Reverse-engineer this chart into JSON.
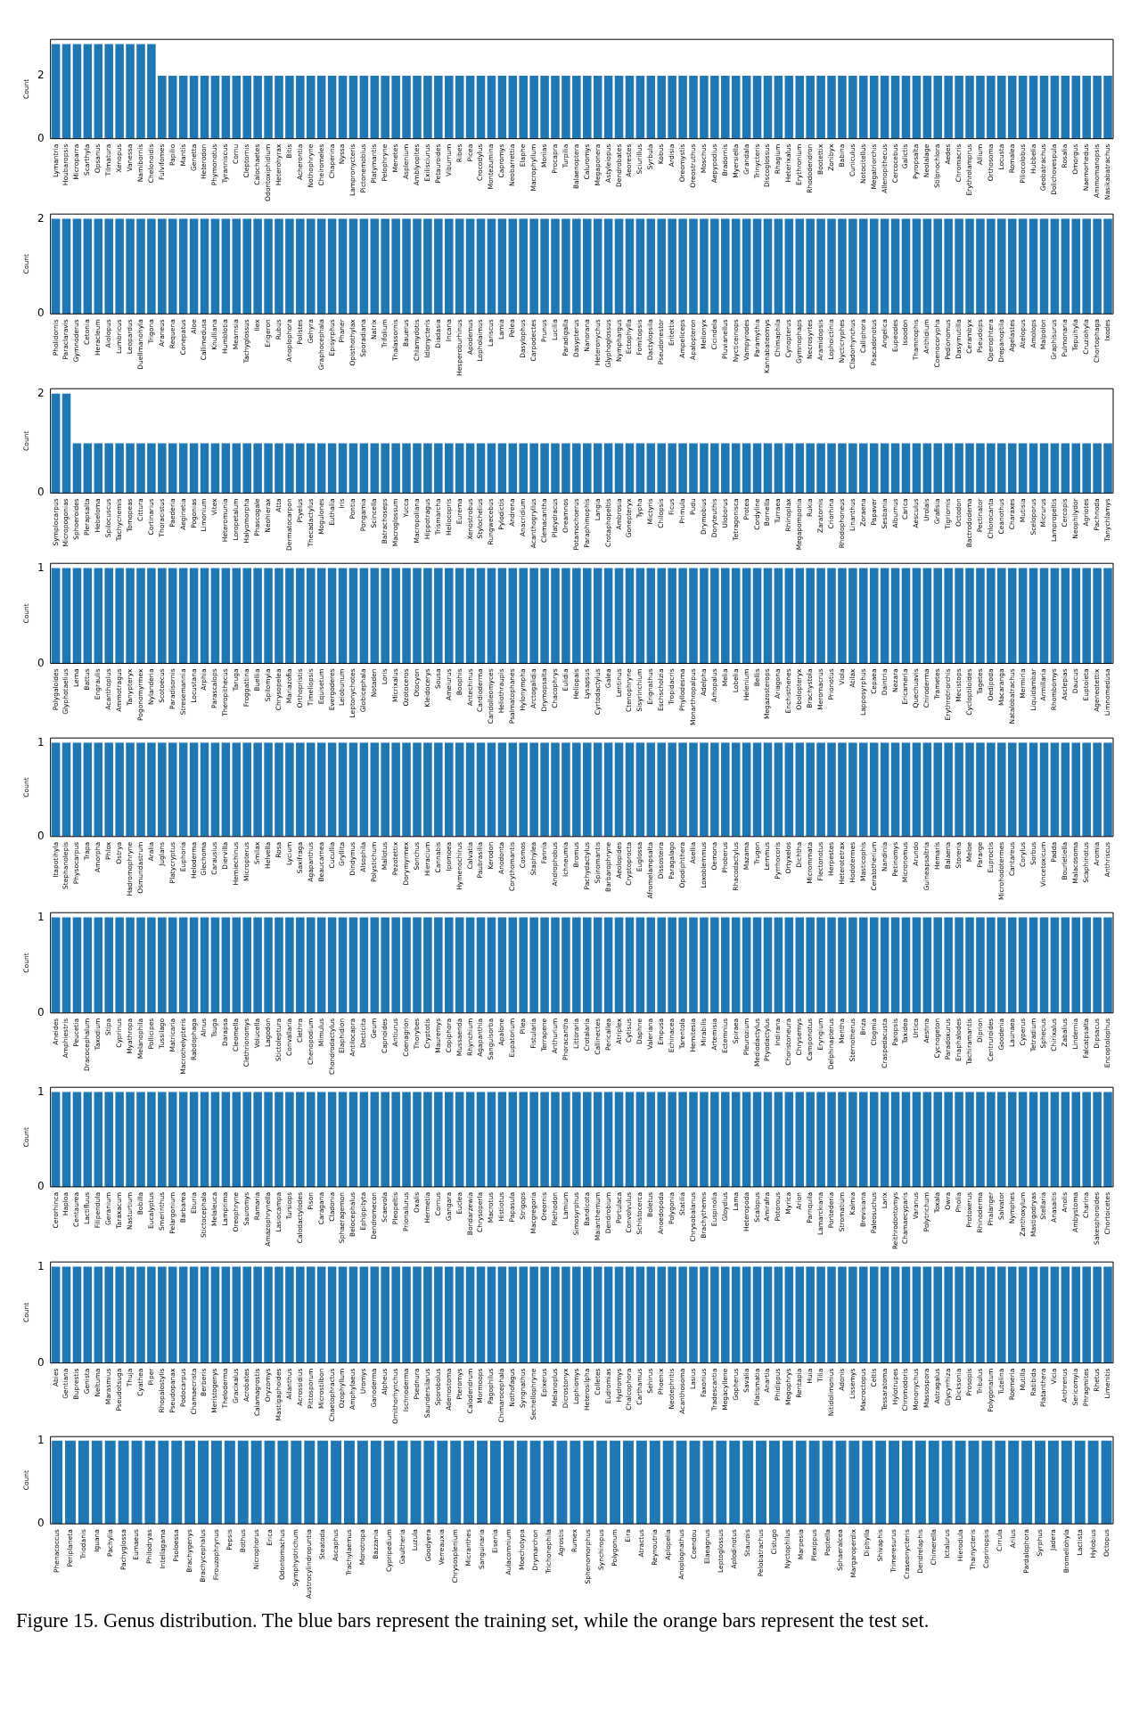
{
  "chart_data": [
    {
      "type": "bar",
      "ylabel": "Count",
      "color": "#1f77b4",
      "ylim": [
        0,
        3.15
      ],
      "yticks": [
        0,
        2
      ],
      "categories": [
        "Lymantria",
        "Houbaropsis",
        "Microparra",
        "Scarthyla",
        "Opsanus",
        "Tilmatura",
        "Xenopus",
        "Vanessa",
        "Namibornis",
        "Chelonoidis",
        "Fulvifomes",
        "Papilio",
        "Mantis",
        "Genetta",
        "Heterodon",
        "Phymonotus",
        "Tyranniscus",
        "Cornu",
        "Cleptornis",
        "Calochaetes",
        "Odontoxiphidium",
        "Heterohyrax",
        "Bitis",
        "Acherontia",
        "Nothophryne",
        "Cheiromeles",
        "Chaperina",
        "Nyssa",
        "Lampronycteris",
        "Pictonemobius",
        "Platymantis",
        "Pelophryne",
        "Menetes",
        "Asplenium",
        "Amblyopites",
        "Exilisciurus",
        "Petauroides",
        "Viburnum",
        "Ribes",
        "Picea",
        "Crocodylus",
        "Montezumina",
        "Capromys",
        "Neobarrettia",
        "Elaphe",
        "Macrophyllum",
        "Monias",
        "Procapra",
        "Turpilia",
        "Balaenoptera",
        "Caluromys",
        "Megaponera",
        "Astyleiopus",
        "Dendrobates",
        "Aeorestes",
        "Sciurillus",
        "Syrbula",
        "Kobus",
        "Ardisia",
        "Oreomystis",
        "Oreostruthus",
        "Moschus",
        "Aepypodius",
        "Bradornis",
        "Myersiella",
        "Grandala",
        "Trinycteris",
        "Discoglossus",
        "Rhagium",
        "Heterixalus",
        "Erythronium",
        "Rhododendron",
        "Bootettix",
        "Zonibyx",
        "Babina",
        "Cuniculus",
        "Notocitellus",
        "Megatriorchis",
        "Allenopithecus",
        "Cercocebus",
        "Galictis",
        "Pyropsalta",
        "Neolalage",
        "Stilpnochlora",
        "Aedes",
        "Chromacris",
        "Erythrolamprus",
        "Allium",
        "Orthosoma",
        "Locusta",
        "Romalea",
        "Piliocolobus",
        "Hubbelia",
        "Geobatrachus",
        "Dolichovespula",
        "Rosalia",
        "Omorgus",
        "Naemorhedus",
        "Ammomanopsis",
        "Nasikabatrachus"
      ],
      "values": [
        3,
        3,
        3,
        3,
        3,
        3,
        3,
        3,
        3,
        3,
        2,
        2,
        2,
        2,
        2,
        2,
        2,
        2,
        2,
        2,
        2,
        2,
        2,
        2,
        2,
        2,
        2,
        2,
        2,
        2,
        2,
        2,
        2,
        2,
        2,
        2,
        2,
        2,
        2,
        2,
        2,
        2,
        2,
        2,
        2,
        2,
        2,
        2,
        2,
        2,
        2,
        2,
        2,
        2,
        2,
        2,
        2,
        2,
        2,
        2,
        2,
        2,
        2,
        2,
        2,
        2,
        2,
        2,
        2,
        2,
        2,
        2,
        2,
        2,
        2,
        2,
        2,
        2,
        2,
        2,
        2,
        2,
        2,
        2,
        2,
        2,
        2,
        2,
        2,
        2,
        2,
        2,
        2,
        2,
        2,
        2,
        2,
        2,
        2,
        2
      ]
    },
    {
      "type": "bar",
      "ylabel": "Count",
      "color": "#1f77b4",
      "ylim": [
        0,
        2.1
      ],
      "yticks": [
        0,
        2
      ],
      "categories": [
        "Pholidornis",
        "Paraclaravis",
        "Gymnoderus",
        "Cetonia",
        "Heracleum",
        "Aiolopus",
        "Lumbricus",
        "Leopardus",
        "Duellmanohyla",
        "Trigona",
        "Araneus",
        "Requena",
        "Conepatus",
        "Aloe",
        "Callimedusa",
        "Knulliana",
        "Humblotia",
        "Mearnsia",
        "Tachyglossus",
        "Ilex",
        "Erigeron",
        "Rubus",
        "Anoplophora",
        "Polistes",
        "Gehyra",
        "Graphocephala",
        "Episyrphus",
        "Phaner",
        "Opisthothylax",
        "Sporadiana",
        "Natrix",
        "Trifolium",
        "Thalassornis",
        "Bauerus",
        "Chlamydotis",
        "Idionycteris",
        "Diadasia",
        "Incana",
        "Hesperoburhinus",
        "Apodemus",
        "Lopholaimus",
        "Lariscus",
        "Lamia",
        "Pelea",
        "Dasylophus",
        "Carpodectes",
        "Prunus",
        "Lucilia",
        "Paradigalla",
        "Dasypterus",
        "Nanorana",
        "Heteronychus",
        "Glyphoglossus",
        "Nymphargus",
        "Ectophylla",
        "Fomitopsis",
        "Dactylopsila",
        "Pseudonestor",
        "Eritettix",
        "Ampeliceps",
        "Apalopteron",
        "Melionyx",
        "Cicindela",
        "Pluvianellus",
        "Nycticeinops",
        "Vampyrodes",
        "Paramythia",
        "Kannabateomys",
        "Chimaphila",
        "Cynopterus",
        "Gymnophaps",
        "Necrosyrtes",
        "Aramidopsis",
        "Lophoictinia",
        "Nycticryphes",
        "Cladorhynchus",
        "Calliphora",
        "Psacadonotus",
        "Angelica",
        "Eupeodes",
        "Isoodon",
        "Thamnophis",
        "Anthidium",
        "Coenocorypha",
        "Pedionomus",
        "Dasymutilla",
        "Cerambyx",
        "Pseudoips",
        "Operophtera",
        "Drepanoptila",
        "Agelastes",
        "Atelopus",
        "Amolops",
        "Malpolon",
        "Graphisurus",
        "Pulmonaria",
        "Tepuihyla",
        "Cruziohyla",
        "Chortophaga",
        "Ixodes"
      ],
      "values": [
        2,
        2,
        2,
        2,
        2,
        2,
        2,
        2,
        2,
        2,
        2,
        2,
        2,
        2,
        2,
        2,
        2,
        2,
        2,
        2,
        2,
        2,
        2,
        2,
        2,
        2,
        2,
        2,
        2,
        2,
        2,
        2,
        2,
        2,
        2,
        2,
        2,
        2,
        2,
        2,
        2,
        2,
        2,
        2,
        2,
        2,
        2,
        2,
        2,
        2,
        2,
        2,
        2,
        2,
        2,
        2,
        2,
        2,
        2,
        2,
        2,
        2,
        2,
        2,
        2,
        2,
        2,
        2,
        2,
        2,
        2,
        2,
        2,
        2,
        2,
        2,
        2,
        2,
        2,
        2,
        2,
        2,
        2,
        2,
        2,
        2,
        2,
        2,
        2,
        2,
        2,
        2,
        2,
        2,
        2,
        2,
        2,
        2,
        2,
        2
      ]
    },
    {
      "type": "bar",
      "ylabel": "Count",
      "color": "#1f77b4",
      "ylim": [
        0,
        2.1
      ],
      "yticks": [
        0,
        2
      ],
      "categories": [
        "Symplocarpus",
        "Micropogonias",
        "Sphoeroides",
        "Plerapsalta",
        "Hebeloma",
        "Spilocuscus",
        "Tachycnemis",
        "Tomopeas",
        "Cittura",
        "Cortinarius",
        "Thoracistus",
        "Paederia",
        "Aeginetia",
        "Pogonias",
        "Limonium",
        "Vitex",
        "Heteromunia",
        "Loropetalum",
        "Halyomorpha",
        "Phascogale",
        "Neohierax",
        "Atta",
        "Dermatocarpon",
        "Ptyelus",
        "Thecadactylus",
        "Mogulones",
        "Euthalia",
        "Iris",
        "Pontia",
        "Pongamia",
        "Scincella",
        "Batrachoseps",
        "Macroglossum",
        "Yucca",
        "Macropoliana",
        "Hippotragus",
        "Trismarcha",
        "Heliocopris",
        "Eurema",
        "Xenostrobus",
        "Stylochelius",
        "Rungwecebus",
        "Pylodictis",
        "Andrena",
        "Anacridium",
        "Acanthogryllus",
        "Clemacantha",
        "Platydracus",
        "Oreamnos",
        "Potamochoerus",
        "Paraphimophis",
        "Langia",
        "Crotaphopeltis",
        "Ambrosia",
        "Gonepteryx",
        "Typha",
        "Mictyris",
        "Chilopsis",
        "Ficus",
        "Primula",
        "Pudu",
        "Drymobius",
        "Doryteuthis",
        "Uloborus",
        "Tetragonisca",
        "Protea",
        "Cordyline",
        "Bornella",
        "Turraea",
        "Rhinoplax",
        "Megapomponia",
        "Rukia",
        "Zaratornis",
        "Criorhina",
        "Rhodophoneus",
        "Linanthus",
        "Zoraena",
        "Papaver",
        "Sesbania",
        "Alburnus",
        "Carica",
        "Aesculus",
        "Urolais",
        "Grafisia",
        "Tigriornis",
        "Octodon",
        "Bactrododema",
        "Pectinator",
        "Chlorocanta",
        "Ceanothus",
        "Charaxes",
        "Mutisia",
        "Sceloporus",
        "Micrurus",
        "Lampropeltis",
        "Cercopis",
        "Neophilydor",
        "Agriotes",
        "Pachnoda",
        "Tanychlamys"
      ],
      "values": [
        2,
        2,
        1,
        1,
        1,
        1,
        1,
        1,
        1,
        1,
        1,
        1,
        1,
        1,
        1,
        1,
        1,
        1,
        1,
        1,
        1,
        1,
        1,
        1,
        1,
        1,
        1,
        1,
        1,
        1,
        1,
        1,
        1,
        1,
        1,
        1,
        1,
        1,
        1,
        1,
        1,
        1,
        1,
        1,
        1,
        1,
        1,
        1,
        1,
        1,
        1,
        1,
        1,
        1,
        1,
        1,
        1,
        1,
        1,
        1,
        1,
        1,
        1,
        1,
        1,
        1,
        1,
        1,
        1,
        1,
        1,
        1,
        1,
        1,
        1,
        1,
        1,
        1,
        1,
        1,
        1,
        1,
        1,
        1,
        1,
        1,
        1,
        1,
        1,
        1,
        1,
        1,
        1,
        1,
        1,
        1,
        1,
        1,
        1,
        1
      ]
    },
    {
      "type": "bar",
      "ylabel": "Count",
      "color": "#1f77b4",
      "ylim": [
        0,
        1.05
      ],
      "yticks": [
        0,
        1
      ],
      "categories": [
        "Polygaloides",
        "Glyphotaelius",
        "Lema",
        "Battus",
        "Engraulis",
        "Acanthoplus",
        "Ammotragus",
        "Tanypteryx",
        "Pogonomyrmex",
        "Nylanderia",
        "Scotoecus",
        "Paradisornis",
        "Stresemannia",
        "Locustana",
        "Arphia",
        "Parascalops",
        "Theropithecus",
        "Taruga",
        "Froggattina",
        "Buellia",
        "Spilomyia",
        "Chrysopelea",
        "Mariazofia",
        "Orthopristis",
        "Timeliopsis",
        "Equisetum",
        "Evergoderes",
        "Leiobunum",
        "Leptonychotes",
        "Globicephala",
        "Notaden",
        "Loris",
        "Micrixalus",
        "Ozotoceros",
        "Otocyon",
        "Kleidocerys",
        "Sousa",
        "Ameiurus",
        "Boophis",
        "Antechinus",
        "Cardioderma",
        "Candolleomyces",
        "Heliothraupis",
        "Psalmatophanes",
        "Hylonympha",
        "Arctogalidia",
        "Drymopsalta",
        "Chacophrys",
        "Eulidia",
        "Heliopais",
        "Lysapsus",
        "Cyrtodactylus",
        "Galea",
        "Lentinus",
        "Ctenophryne",
        "Sisyrinchium",
        "Erignathus",
        "Eschscholzia",
        "Tropidacris",
        "Phyllodesma",
        "Monarthropalpus",
        "Adelpha",
        "Arhopalus",
        "Melia",
        "Lobelia",
        "Helenium",
        "Bellis",
        "Megazosterops",
        "Ariagona",
        "Enchisthenes",
        "Obolopteryx",
        "Brachystola",
        "Meromacrus",
        "Prionotus",
        "Viola",
        "Atilax",
        "Lapposyrphus",
        "Cepaea",
        "Daintria",
        "Nezara",
        "Ericameria",
        "Quechuavis",
        "Chiroderma",
        "Trametes",
        "Erythrotriorchis",
        "Mecistops",
        "Cycloptiloides",
        "Tagetes",
        "Oedipoda",
        "Macaranga",
        "Natalobatrachus",
        "Mermiria",
        "Liquidambar",
        "Armillaria",
        "Rhombomys",
        "Asclepias",
        "Daucus",
        "Euptoieta",
        "Ageneotettix",
        "Limnomedusa"
      ],
      "values": [
        1,
        1,
        1,
        1,
        1,
        1,
        1,
        1,
        1,
        1,
        1,
        1,
        1,
        1,
        1,
        1,
        1,
        1,
        1,
        1,
        1,
        1,
        1,
        1,
        1,
        1,
        1,
        1,
        1,
        1,
        1,
        1,
        1,
        1,
        1,
        1,
        1,
        1,
        1,
        1,
        1,
        1,
        1,
        1,
        1,
        1,
        1,
        1,
        1,
        1,
        1,
        1,
        1,
        1,
        1,
        1,
        1,
        1,
        1,
        1,
        1,
        1,
        1,
        1,
        1,
        1,
        1,
        1,
        1,
        1,
        1,
        1,
        1,
        1,
        1,
        1,
        1,
        1,
        1,
        1,
        1,
        1,
        1,
        1,
        1,
        1,
        1,
        1,
        1,
        1,
        1,
        1,
        1,
        1,
        1,
        1,
        1,
        1,
        1,
        1
      ]
    },
    {
      "type": "bar",
      "ylabel": "Count",
      "color": "#1f77b4",
      "ylim": [
        0,
        1.05
      ],
      "yticks": [
        0,
        1
      ],
      "categories": [
        "Itapotihyla",
        "Stephanolepis",
        "Physocarpus",
        "Trapa",
        "Amorpha",
        "Phlox",
        "Ostrya",
        "Hadromophryne",
        "Osmundastrum",
        "Aralia",
        "Juglans",
        "Platycryptus",
        "Euphoria",
        "Heloderma",
        "Glechoma",
        "Carausius",
        "Diervilla",
        "Hemiechinus",
        "Micropterus",
        "Smilax",
        "Helvella",
        "Rosa",
        "Lycium",
        "Saxifraga",
        "Agapanthus",
        "Beaucarnea",
        "Cucullia",
        "Gryllita",
        "Dindymus",
        "Alsophila",
        "Polystichum",
        "Mallotus",
        "Pezotettix",
        "Dorymyrmex",
        "Sonchus",
        "Hieracium",
        "Cannabis",
        "Ipomoea",
        "Hymenochirus",
        "Calvatia",
        "Paubrasilia",
        "Kerodon",
        "Anodonta",
        "Corythomantis",
        "Cosmos",
        "Staphylea",
        "Fannia",
        "Androphobus",
        "Ichneumia",
        "Bromus",
        "Pachydactylus",
        "Spinomantis",
        "Barbarophryne",
        "Aeolopides",
        "Cryptoprocta",
        "Euglossa",
        "Afromelampsalta",
        "Dissosteira",
        "Paragalago",
        "Opodiphthera",
        "Asellia",
        "Loxoblemmus",
        "Oemona",
        "Phoberus",
        "Rhacodactylus",
        "Mazama",
        "Trugon",
        "Lemmus",
        "Pyrrhocoris",
        "Ortyxelos",
        "Dichtha",
        "Micrommata",
        "Flectonotus",
        "Herpestes",
        "Heterotetrax",
        "Hodotermes",
        "Masticophis",
        "Ceratotherium",
        "Nandinia",
        "Petinomys",
        "Micronomus",
        "Arundo",
        "Guineapsaltria",
        "Hemaris",
        "Balaena",
        "Storeria",
        "Meloe",
        "Pararge",
        "Euproctis",
        "Microhodotermes",
        "Cantareus",
        "Corylus",
        "Sorbus",
        "Vincetoxicum",
        "Padda",
        "Bourletiella",
        "Malacosoma",
        "Scaphinotus",
        "Aromia",
        "Anthriscus"
      ],
      "values": [
        1,
        1,
        1,
        1,
        1,
        1,
        1,
        1,
        1,
        1,
        1,
        1,
        1,
        1,
        1,
        1,
        1,
        1,
        1,
        1,
        1,
        1,
        1,
        1,
        1,
        1,
        1,
        1,
        1,
        1,
        1,
        1,
        1,
        1,
        1,
        1,
        1,
        1,
        1,
        1,
        1,
        1,
        1,
        1,
        1,
        1,
        1,
        1,
        1,
        1,
        1,
        1,
        1,
        1,
        1,
        1,
        1,
        1,
        1,
        1,
        1,
        1,
        1,
        1,
        1,
        1,
        1,
        1,
        1,
        1,
        1,
        1,
        1,
        1,
        1,
        1,
        1,
        1,
        1,
        1,
        1,
        1,
        1,
        1,
        1,
        1,
        1,
        1,
        1,
        1,
        1,
        1,
        1,
        1,
        1,
        1,
        1,
        1,
        1,
        1
      ]
    },
    {
      "type": "bar",
      "ylabel": "Count",
      "color": "#1f77b4",
      "ylim": [
        0,
        1.05
      ],
      "yticks": [
        0,
        1
      ],
      "categories": [
        "Aneides",
        "Amphiestris",
        "Peucetia",
        "Dracocephalum",
        "Taxodium",
        "Stipa",
        "Cyprinus",
        "Myathropa",
        "Melanophila",
        "Pollicipes",
        "Tussilago",
        "Matricaria",
        "Macrothelypteris",
        "Rabdophaga",
        "Alnus",
        "Tsuga",
        "Darapsa",
        "Cleomella",
        "Clethrionomys",
        "Volucella",
        "Lagodon",
        "Stictoleptura",
        "Convallaria",
        "Clethra",
        "Chenopodium",
        "Mimulus",
        "Chondrodactylus",
        "Elaphidion",
        "Antilocapra",
        "Decticita",
        "Geum",
        "Capnoides",
        "Antiurus",
        "Coenagrion",
        "Thorybes",
        "Cryptotis",
        "Mauremys",
        "Copiphora",
        "Mussaenda",
        "Rhynchium",
        "Agapanthia",
        "Sanguisorba",
        "Apalone",
        "Eupatorium",
        "Pilea",
        "Fistularia",
        "Terrapene",
        "Anthurium",
        "Phoracantha",
        "Littoraria",
        "Crotalaria",
        "Callinectes",
        "Pericallea",
        "Atriplex",
        "Cytisus",
        "Daphne",
        "Valeriana",
        "Empusa",
        "Echinacea",
        "Tarentola",
        "Hemitesia",
        "Mirabilis",
        "Artemisia",
        "Ectemnius",
        "Spiraea",
        "Pleurozium",
        "Mediodactylus",
        "Ptyodactylus",
        "Indirana",
        "Choristoneura",
        "Chrysemys",
        "Camponotus",
        "Eryngium",
        "Delphinapterus",
        "Mentha",
        "Sternotherus",
        "Briza",
        "Clogmia",
        "Craspedacusta",
        "Paropsis",
        "Taxidea",
        "Urtica",
        "Aeshna",
        "Cycnogeton",
        "Paradoxurus",
        "Enaphalodes",
        "Tachiramantis",
        "Diprion",
        "Centruroides",
        "Goodenia",
        "Launaea",
        "Cyperus",
        "Tetradium",
        "Sphecius",
        "Chirixalus",
        "Zabalius",
        "Lindernia",
        "Falcatpsalta",
        "Dipsacus",
        "Encoptolophus"
      ],
      "values": [
        1,
        1,
        1,
        1,
        1,
        1,
        1,
        1,
        1,
        1,
        1,
        1,
        1,
        1,
        1,
        1,
        1,
        1,
        1,
        1,
        1,
        1,
        1,
        1,
        1,
        1,
        1,
        1,
        1,
        1,
        1,
        1,
        1,
        1,
        1,
        1,
        1,
        1,
        1,
        1,
        1,
        1,
        1,
        1,
        1,
        1,
        1,
        1,
        1,
        1,
        1,
        1,
        1,
        1,
        1,
        1,
        1,
        1,
        1,
        1,
        1,
        1,
        1,
        1,
        1,
        1,
        1,
        1,
        1,
        1,
        1,
        1,
        1,
        1,
        1,
        1,
        1,
        1,
        1,
        1,
        1,
        1,
        1,
        1,
        1,
        1,
        1,
        1,
        1,
        1,
        1,
        1,
        1,
        1,
        1,
        1,
        1,
        1,
        1,
        1
      ]
    },
    {
      "type": "bar",
      "ylabel": "Count",
      "color": "#1f77b4",
      "ylim": [
        0,
        1.05
      ],
      "yticks": [
        0,
        1
      ],
      "categories": [
        "Cerorhinca",
        "Haploa",
        "Centaurea",
        "Lactifluus",
        "Filipendula",
        "Geranium",
        "Taraxacum",
        "Nasturtium",
        "Bobilla",
        "Eucalyptus",
        "Smerinthus",
        "Pelargonium",
        "Barbarea",
        "Eburia",
        "Stictocephala",
        "Melaleuca",
        "Lamprima",
        "Oreophryne",
        "Sauromys",
        "Ramaria",
        "Amazophrynella",
        "Lasiocampa",
        "Tursiops",
        "Calodactylodes",
        "Pison",
        "Caragana",
        "Cladonia",
        "Sphaeragemon",
        "Belocephalus",
        "Ephippityta",
        "Dendromecon",
        "Scaevola",
        "Pleopeltis",
        "Prionailurus",
        "Oxalis",
        "Hermetia",
        "Cornus",
        "Gangara",
        "Euclea",
        "Bondarzewia",
        "Chrysoperla",
        "Macrotus",
        "Histiotus",
        "Papasula",
        "Strigops",
        "Macgregoria",
        "Oreornis",
        "Plethodon",
        "Lamium",
        "Simosyrphus",
        "Bandicota",
        "Maianthemum",
        "Dendrobium",
        "Portulaca",
        "Convolvulus",
        "Schistocerca",
        "Boletus",
        "Anoedopoda",
        "Polygonia",
        "Statilia",
        "Chrysobalanus",
        "Brachythemis",
        "Euspinolia",
        "Gloydius",
        "Lama",
        "Heteropoda",
        "Scalopus",
        "Amirafra",
        "Potorous",
        "Myrica",
        "Arion",
        "Parnquila",
        "Lamarckiana",
        "Pontederia",
        "Stromatium",
        "Kalmia",
        "Brevisiana",
        "Paleosuchus",
        "Larix",
        "Reithrodontomys",
        "Chamaecyparis",
        "Varanus",
        "Polytrichum",
        "Toxala",
        "Owra",
        "Pholia",
        "Protoxerus",
        "Rhinoderma",
        "Phalanger",
        "Salvator",
        "Nymphes",
        "Zanthoxylum",
        "Mastigodryas",
        "Stellaria",
        "Anasaitis",
        "Anolis",
        "Ambystoma",
        "Charina",
        "Sakesphoroides",
        "Chortoicetes"
      ],
      "values": [
        1,
        1,
        1,
        1,
        1,
        1,
        1,
        1,
        1,
        1,
        1,
        1,
        1,
        1,
        1,
        1,
        1,
        1,
        1,
        1,
        1,
        1,
        1,
        1,
        1,
        1,
        1,
        1,
        1,
        1,
        1,
        1,
        1,
        1,
        1,
        1,
        1,
        1,
        1,
        1,
        1,
        1,
        1,
        1,
        1,
        1,
        1,
        1,
        1,
        1,
        1,
        1,
        1,
        1,
        1,
        1,
        1,
        1,
        1,
        1,
        1,
        1,
        1,
        1,
        1,
        1,
        1,
        1,
        1,
        1,
        1,
        1,
        1,
        1,
        1,
        1,
        1,
        1,
        1,
        1,
        1,
        1,
        1,
        1,
        1,
        1,
        1,
        1,
        1,
        1,
        1,
        1,
        1,
        1,
        1,
        1,
        1,
        1,
        1,
        1
      ]
    },
    {
      "type": "bar",
      "ylabel": "Count",
      "color": "#1f77b4",
      "ylim": [
        0,
        1.05
      ],
      "yticks": [
        0,
        1
      ],
      "categories": [
        "Abies",
        "Gentiana",
        "Buprestis",
        "Genista",
        "Neltuma",
        "Marasmius",
        "Pseudotsuga",
        "Thuja",
        "Cyathea",
        "Piper",
        "Rhopalostylis",
        "Pseudopanax",
        "Podocarpus",
        "Chamaecrista",
        "Berberis",
        "Meristogenys",
        "Theloderma",
        "Gracixalus",
        "Acrobates",
        "Calamagrostis",
        "Oryzomys",
        "Mastigaphoides",
        "Ailanthus",
        "Acrossidius",
        "Pittosporum",
        "Microstilbon",
        "Chaetophractus",
        "Ozophyllum",
        "Amphylaeus",
        "Uromys",
        "Ganoderma",
        "Alpheus",
        "Ornithorhynchus",
        "Ischnoderma",
        "Psednura",
        "Saundersilarus",
        "Sporobolus",
        "Adenostoma",
        "Pteromys",
        "Calodendrum",
        "Mormoops",
        "Pagophilus",
        "Chimarocephala",
        "Nothofagus",
        "Syngnathus",
        "Sechellophryne",
        "Epixerus",
        "Melanoplus",
        "Dicrostonyx",
        "Lophiomys",
        "Heterosilpha",
        "Colletes",
        "Eudromias",
        "Hydromys",
        "Chalcophora",
        "Carthamus",
        "Sehirus",
        "Phoenix",
        "Neotephritis",
        "Acanthosoma",
        "Lasius",
        "Faxonius",
        "Tradescantia",
        "Megacyllene",
        "Gopherus",
        "Savalia",
        "Platismatia",
        "Anartia",
        "Phidippus",
        "Megophrys",
        "Rentapia",
        "Huia",
        "Tilia",
        "Nitidolimonius",
        "Adonis",
        "Lissemys",
        "Macroctopus",
        "Celtis",
        "Tessaratoma",
        "Hylotrupes",
        "Chromodoris",
        "Mononychus",
        "Massospora",
        "Astragalus",
        "Glycyrrhiza",
        "Dicksonia",
        "Prosopis",
        "Tribulus",
        "Polygonatum",
        "Tutelina",
        "Roemeria",
        "Mutilla",
        "Ratibida",
        "Platanthera",
        "Vicia",
        "Anthrenus",
        "Sericomyia",
        "Phragmites",
        "Rhetus",
        "Limenitis"
      ],
      "values": [
        1,
        1,
        1,
        1,
        1,
        1,
        1,
        1,
        1,
        1,
        1,
        1,
        1,
        1,
        1,
        1,
        1,
        1,
        1,
        1,
        1,
        1,
        1,
        1,
        1,
        1,
        1,
        1,
        1,
        1,
        1,
        1,
        1,
        1,
        1,
        1,
        1,
        1,
        1,
        1,
        1,
        1,
        1,
        1,
        1,
        1,
        1,
        1,
        1,
        1,
        1,
        1,
        1,
        1,
        1,
        1,
        1,
        1,
        1,
        1,
        1,
        1,
        1,
        1,
        1,
        1,
        1,
        1,
        1,
        1,
        1,
        1,
        1,
        1,
        1,
        1,
        1,
        1,
        1,
        1,
        1,
        1,
        1,
        1,
        1,
        1,
        1,
        1,
        1,
        1,
        1,
        1,
        1,
        1,
        1,
        1,
        1,
        1,
        1,
        1
      ]
    },
    {
      "type": "bar",
      "ylabel": "Count",
      "color": "#1f77b4",
      "ylim": [
        0,
        1.05
      ],
      "yticks": [
        0,
        1
      ],
      "categories": [
        "Phenacoccus",
        "Periplaneta",
        "Triodanis",
        "Iguana",
        "Pachylia",
        "Pachyglossa",
        "Eumaeus",
        "Philodryas",
        "Intellagama",
        "Psoloessa",
        "Brachygenys",
        "Brachycephalus",
        "Firouzophrynus",
        "Pepsis",
        "Bothus",
        "Nicrophorus",
        "Erica",
        "Odontomachus",
        "Symphyotrichum",
        "Austrocylindropuntia",
        "Steatoda",
        "Ascaphus",
        "Trachylaemus",
        "Monotropa",
        "Bazzania",
        "Cypripedium",
        "Gaultheria",
        "Luzula",
        "Goodyera",
        "Verreauxia",
        "Chrysosplenium",
        "Micranthes",
        "Sanguinaria",
        "Eisenia",
        "Aulacomnium",
        "Moechotypa",
        "Drymarchon",
        "Trichonephila",
        "Agrostis",
        "Rumex",
        "Sphenomorphus",
        "Synchiropus",
        "Polygonum",
        "Eira",
        "Atractus",
        "Reynoutria",
        "Aplopelia",
        "Anoplognathus",
        "Coendou",
        "Elaeagnus",
        "Leptoglossus",
        "Aplodinotus",
        "Staurois",
        "Pelobatrachus",
        "Cistugo",
        "Nyctophilus",
        "Marpesia",
        "Plexippus",
        "Poptella",
        "Sphaeralcea",
        "Margaroperdix",
        "Diphylla",
        "Shivaphis",
        "Trimeresurus",
        "Craseonycteris",
        "Dendrelaphis",
        "Chimerella",
        "Ictalurus",
        "Hierodula",
        "Thainycteris",
        "Coprinopsis",
        "Cirrula",
        "Arilus",
        "Pardalophora",
        "Syrphus",
        "Jadera",
        "Bromeliohyla",
        "Lactista",
        "Hylobius",
        "Octopus"
      ],
      "values": [
        1,
        1,
        1,
        1,
        1,
        1,
        1,
        1,
        1,
        1,
        1,
        1,
        1,
        1,
        1,
        1,
        1,
        1,
        1,
        1,
        1,
        1,
        1,
        1,
        1,
        1,
        1,
        1,
        1,
        1,
        1,
        1,
        1,
        1,
        1,
        1,
        1,
        1,
        1,
        1,
        1,
        1,
        1,
        1,
        1,
        1,
        1,
        1,
        1,
        1,
        1,
        1,
        1,
        1,
        1,
        1,
        1,
        1,
        1,
        1,
        1,
        1,
        1,
        1,
        1,
        1,
        1,
        1,
        1,
        1,
        1,
        1,
        1,
        1,
        1,
        1,
        1,
        1,
        1,
        1
      ],
      "annotations": [
        "Figure 15. Genus distribution. The blue bars represent the training set, while the orange bars represent the test set."
      ]
    }
  ]
}
